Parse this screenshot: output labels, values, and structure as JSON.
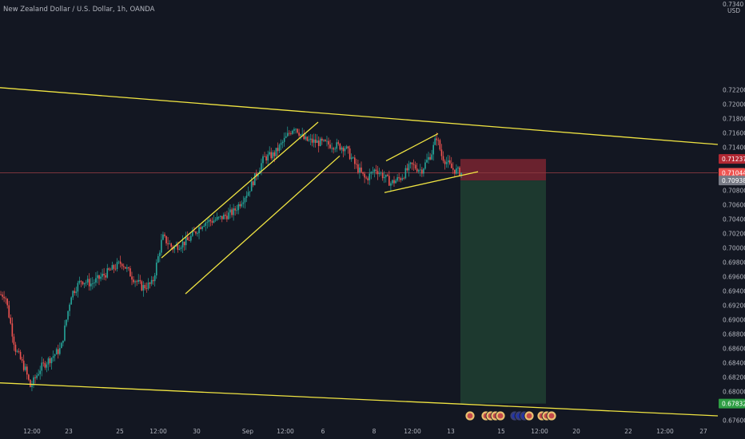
{
  "colors": {
    "background": "#131722",
    "up": "#26a69a",
    "down": "#ef5350",
    "trendline": "#f0e442",
    "stop_zone": "#7a2530",
    "target_zone": "#1d3b30",
    "axis_text": "#b2b5be",
    "price_line": "#8a3a40"
  },
  "header": {
    "title": "New Zealand Dollar / U.S. Dollar, 1h, OANDA",
    "currency_top": "0.7340",
    "currency_unit": "USD"
  },
  "price_axis": {
    "ticks": [
      "0.72200",
      "0.72000",
      "0.71800",
      "0.71600",
      "0.71400",
      "0.70800",
      "0.70600",
      "0.70400",
      "0.70200",
      "0.70000",
      "0.69800",
      "0.69600",
      "0.69400",
      "0.69200",
      "0.69000",
      "0.68800",
      "0.68600",
      "0.68400",
      "0.68200",
      "0.68000",
      "0.67600"
    ],
    "badges": [
      {
        "label": "0.71237",
        "price": 0.71237,
        "color": "#b22833"
      },
      {
        "label": "0.71044",
        "price": 0.71044,
        "color": "#ef5350"
      },
      {
        "label": "0.70938",
        "price": 0.70938,
        "color": "#787b86"
      },
      {
        "label": "0.67832",
        "price": 0.67832,
        "color": "#2e9e44"
      }
    ]
  },
  "time_axis": {
    "labels": [
      "12:00",
      "23",
      "25",
      "12:00",
      "30",
      "Sep",
      "12:00",
      "6",
      "8",
      "12:00",
      "13",
      "15",
      "12:00",
      "20",
      "22",
      "12:00",
      "27"
    ]
  },
  "chart_data": {
    "type": "candlestick",
    "title": "New Zealand Dollar / U.S. Dollar, 1h, OANDA",
    "ylabel": "USD",
    "ylim": [
      0.6755,
      0.7345
    ],
    "current_price": 0.71044,
    "trade_setup": {
      "direction": "short",
      "stop_loss": 0.71237,
      "entry": 0.70938,
      "take_profit": 0.67832
    },
    "close_path": [
      {
        "x": "Aug 20 06:00",
        "y": 0.6935
      },
      {
        "x": "Aug 20 18:00",
        "y": 0.686
      },
      {
        "x": "Aug 21 06:00",
        "y": 0.683
      },
      {
        "x": "Aug 21 12:00",
        "y": 0.6806
      },
      {
        "x": "Aug 22 00:00",
        "y": 0.6833
      },
      {
        "x": "Aug 23 00:00",
        "y": 0.686
      },
      {
        "x": "Aug 23 12:00",
        "y": 0.6935
      },
      {
        "x": "Aug 24 00:00",
        "y": 0.6955
      },
      {
        "x": "Aug 24 12:00",
        "y": 0.695
      },
      {
        "x": "Aug 25 06:00",
        "y": 0.6965
      },
      {
        "x": "Aug 26 00:00",
        "y": 0.698
      },
      {
        "x": "Aug 26 12:00",
        "y": 0.696
      },
      {
        "x": "Aug 27 00:00",
        "y": 0.6945
      },
      {
        "x": "Aug 27 12:00",
        "y": 0.695
      },
      {
        "x": "Aug 28 00:00",
        "y": 0.7015
      },
      {
        "x": "Aug 28 12:00",
        "y": 0.7
      },
      {
        "x": "Aug 29 06:00",
        "y": 0.701
      },
      {
        "x": "Aug 30 00:00",
        "y": 0.7035
      },
      {
        "x": "Aug 30 18:00",
        "y": 0.704
      },
      {
        "x": "Aug 31 12:00",
        "y": 0.705
      },
      {
        "x": "Sep 1 06:00",
        "y": 0.708
      },
      {
        "x": "Sep 2 00:00",
        "y": 0.7125
      },
      {
        "x": "Sep 2 12:00",
        "y": 0.713
      },
      {
        "x": "Sep 3 00:00",
        "y": 0.715
      },
      {
        "x": "Sep 3 12:00",
        "y": 0.717
      },
      {
        "x": "Sep 4 00:00",
        "y": 0.715
      },
      {
        "x": "Sep 5 00:00",
        "y": 0.7145
      },
      {
        "x": "Sep 6 00:00",
        "y": 0.714
      },
      {
        "x": "Sep 6 12:00",
        "y": 0.7115
      },
      {
        "x": "Sep 7 00:00",
        "y": 0.7095
      },
      {
        "x": "Sep 7 12:00",
        "y": 0.711
      },
      {
        "x": "Sep 8 06:00",
        "y": 0.709
      },
      {
        "x": "Sep 8 18:00",
        "y": 0.7098
      },
      {
        "x": "Sep 9 06:00",
        "y": 0.7115
      },
      {
        "x": "Sep 9 18:00",
        "y": 0.7108
      },
      {
        "x": "Sep 10 06:00",
        "y": 0.7132
      },
      {
        "x": "Sep 10 12:00",
        "y": 0.7155
      },
      {
        "x": "Sep 10 18:00",
        "y": 0.7128
      },
      {
        "x": "Sep 11 06:00",
        "y": 0.711
      },
      {
        "x": "Sep 11 18:00",
        "y": 0.7104
      }
    ],
    "x_ticks": [
      "12:00",
      "23",
      "25",
      "12:00",
      "30",
      "Sep",
      "12:00",
      "6",
      "8",
      "12:00",
      "13",
      "15",
      "12:00",
      "20",
      "22",
      "12:00",
      "27"
    ],
    "y_ticks": [
      "0.72200",
      "0.72000",
      "0.71800",
      "0.71600",
      "0.71400",
      "0.70800",
      "0.70600",
      "0.70400",
      "0.70200",
      "0.70000",
      "0.69800",
      "0.69600",
      "0.69400",
      "0.69200",
      "0.69000",
      "0.68800",
      "0.68600",
      "0.68400",
      "0.68200",
      "0.68000",
      "0.67600"
    ],
    "event_flags": [
      "us-flag",
      "us-flag",
      "us-flag",
      "us-flag",
      "us-flag",
      "eu-flag",
      "eu-flag",
      "eu-flag",
      "us-flag",
      "us-flag",
      "us-flag",
      "us-flag"
    ]
  }
}
